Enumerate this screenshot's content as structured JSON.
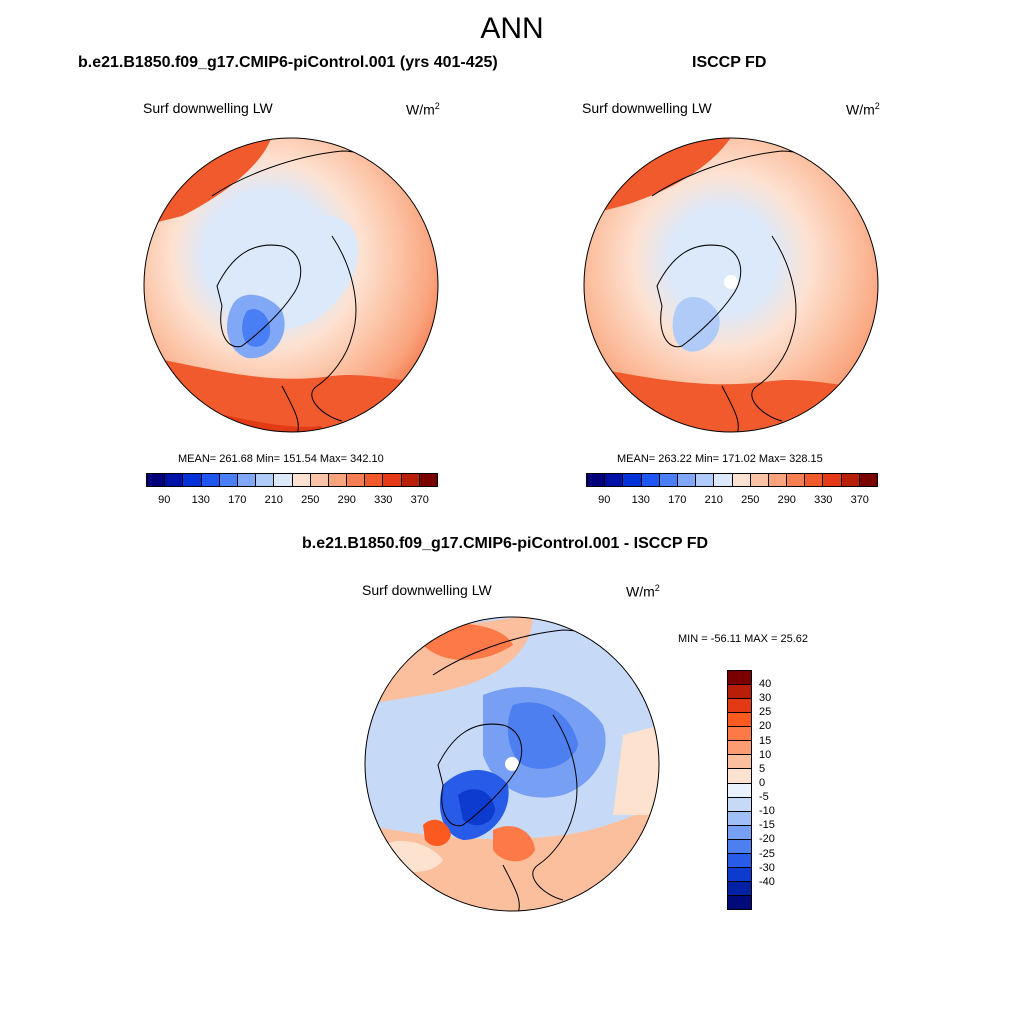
{
  "title": "ANN",
  "panels": {
    "model": {
      "title": "b.e21.B1850.f09_g17.CMIP6-piControl.001 (yrs 401-425)",
      "variable": "Surf downwelling LW",
      "units_base": "W/m",
      "units_exp": "2",
      "stats": "MEAN= 261.68  Min= 151.54  Max= 342.10"
    },
    "obs": {
      "title": "ISCCP FD",
      "variable": "Surf downwelling LW",
      "units_base": "W/m",
      "units_exp": "2",
      "stats": "MEAN= 263.22  Min= 171.02  Max= 328.15"
    },
    "diff": {
      "title": "b.e21.B1850.f09_g17.CMIP6-piControl.001 - ISCCP FD",
      "variable": "Surf downwelling LW",
      "units_base": "W/m",
      "units_exp": "2",
      "stats": "MIN = -56.11 MAX =  25.62"
    }
  },
  "colorbar_abs": {
    "colors": [
      "#00007a",
      "#0011a8",
      "#0030d8",
      "#1f55f0",
      "#4a7ef5",
      "#80a8f7",
      "#b0cbf7",
      "#dce9fb",
      "#fde2d2",
      "#fcc5a8",
      "#f9a37c",
      "#f57e52",
      "#f05a2d",
      "#e23a14",
      "#b81e08",
      "#7a0000"
    ],
    "ticks": [
      "90",
      "130",
      "170",
      "210",
      "250",
      "290",
      "330",
      "370"
    ]
  },
  "colorbar_diff": {
    "colors": [
      "#7a0000",
      "#b81e08",
      "#e23a14",
      "#fa5a20",
      "#fd7a48",
      "#fc9c72",
      "#fcbf9e",
      "#fde3cf",
      "#eaf2fd",
      "#c6daf8",
      "#9fbff6",
      "#779ff3",
      "#4d7ff0",
      "#285ce8",
      "#0d3bcf",
      "#0020a6",
      "#000a7a"
    ],
    "ticks": [
      "40",
      "30",
      "25",
      "20",
      "15",
      "10",
      "5",
      "0",
      "-5",
      "-10",
      "-15",
      "-20",
      "-25",
      "-30",
      "-40"
    ]
  },
  "chart_data": {
    "type": "heatmap",
    "projection": "north polar stereographic",
    "field": "Surf downwelling LW",
    "season": "ANN",
    "panels": [
      {
        "name": "b.e21.B1850.f09_g17.CMIP6-piControl.001 (yrs 401-425)",
        "mean": 261.68,
        "min": 151.54,
        "max": 342.1
      },
      {
        "name": "ISCCP FD",
        "mean": 263.22,
        "min": 171.02,
        "max": 328.15
      },
      {
        "name": "b.e21.B1850.f09_g17.CMIP6-piControl.001 - ISCCP FD",
        "min": -56.11,
        "max": 25.62
      }
    ],
    "abs_levels": [
      90,
      110,
      130,
      150,
      170,
      190,
      210,
      230,
      250,
      270,
      290,
      310,
      330,
      350,
      370
    ],
    "diff_levels": [
      -40,
      -30,
      -25,
      -20,
      -15,
      -10,
      -5,
      0,
      5,
      10,
      15,
      20,
      25,
      30,
      40
    ]
  }
}
